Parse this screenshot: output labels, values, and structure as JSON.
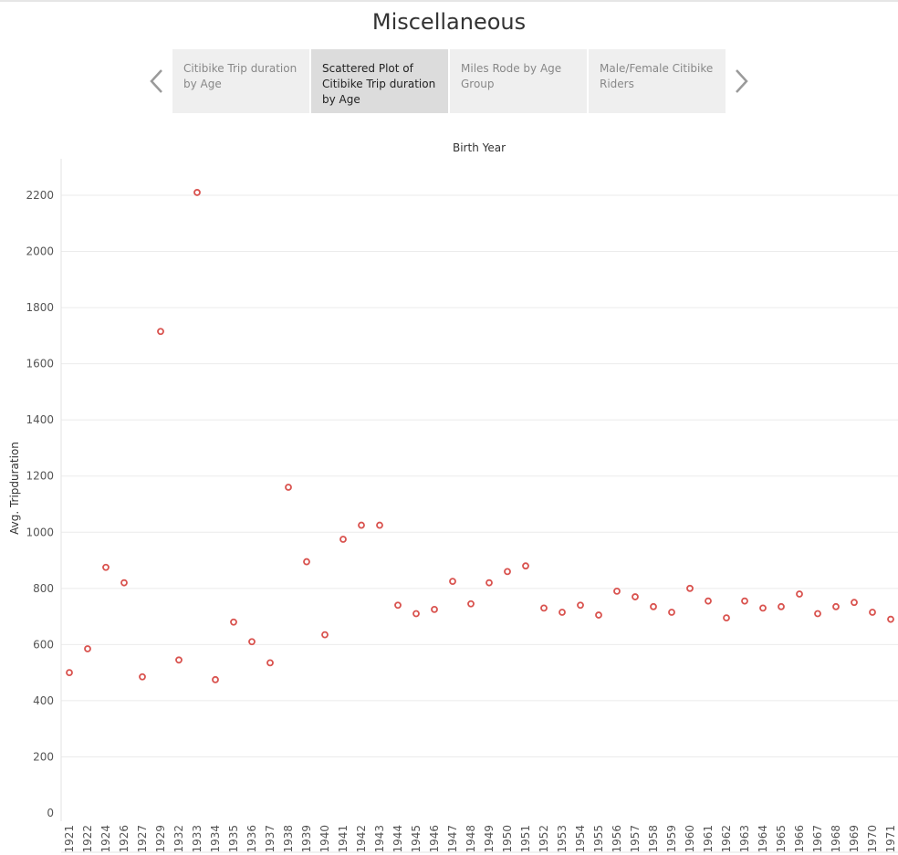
{
  "page": {
    "title": "Miscellaneous"
  },
  "story_nav": {
    "tabs": [
      {
        "label": "Citibike Trip duration by Age",
        "active": false
      },
      {
        "label": "Scattered Plot of Citibike Trip duration by Age",
        "active": true
      },
      {
        "label": "Miles Rode by Age Group",
        "active": false
      },
      {
        "label": "Male/Female Citibike Riders",
        "active": false
      }
    ],
    "prev_icon": "chevron-left-icon",
    "next_icon": "chevron-right-icon"
  },
  "colors": {
    "marker": "#d9534f",
    "grid": "#ebebeb",
    "axis_text": "#555555",
    "tab_bg": "#efefef",
    "tab_active_bg": "#dcdcdc"
  },
  "chart_data": {
    "type": "scatter",
    "title": "",
    "xlabel": "Birth Year",
    "ylabel": "Avg. Tripduration",
    "xlabel_position": "top",
    "ylim": [
      0,
      2300
    ],
    "yticks": [
      0,
      200,
      400,
      600,
      800,
      1000,
      1200,
      1400,
      1600,
      1800,
      2000,
      2200
    ],
    "grid": true,
    "categories": [
      "1921",
      "1922",
      "1924",
      "1926",
      "1927",
      "1929",
      "1932",
      "1933",
      "1934",
      "1935",
      "1936",
      "1937",
      "1938",
      "1939",
      "1940",
      "1941",
      "1942",
      "1943",
      "1944",
      "1945",
      "1946",
      "1947",
      "1948",
      "1949",
      "1950",
      "1951",
      "1952",
      "1953",
      "1954",
      "1955",
      "1956",
      "1957",
      "1958",
      "1959",
      "1960",
      "1961",
      "1962",
      "1963",
      "1964",
      "1965",
      "1966",
      "1967",
      "1968",
      "1969",
      "1970",
      "1971"
    ],
    "values": [
      500,
      585,
      875,
      820,
      485,
      1715,
      545,
      2210,
      475,
      680,
      610,
      535,
      1160,
      895,
      635,
      975,
      1025,
      1025,
      740,
      710,
      725,
      825,
      745,
      820,
      860,
      880,
      730,
      715,
      740,
      705,
      790,
      770,
      735,
      715,
      800,
      755,
      695,
      755,
      730,
      735,
      780,
      710,
      735,
      750,
      715,
      690
    ]
  }
}
